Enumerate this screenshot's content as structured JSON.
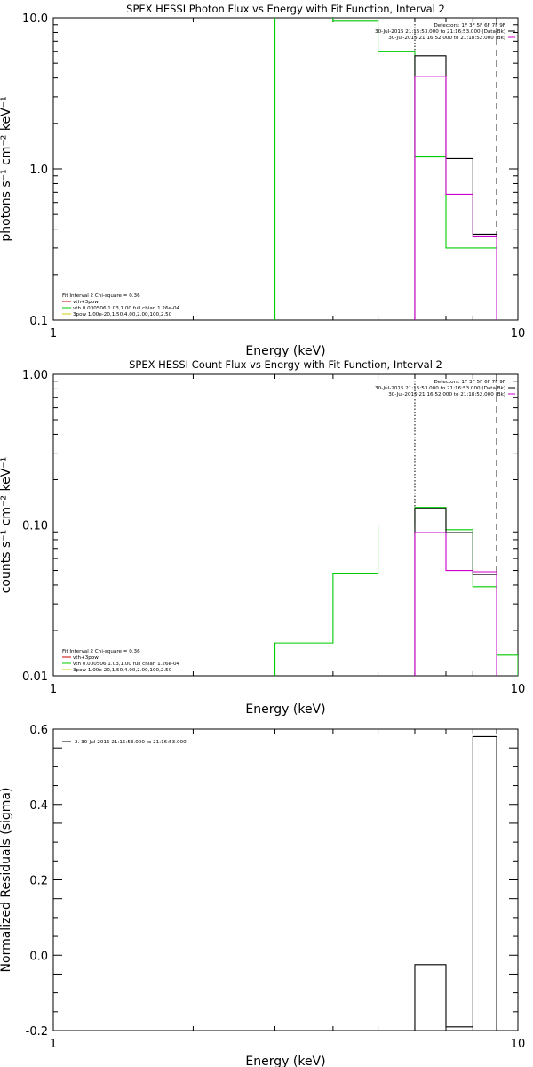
{
  "chart_data": [
    {
      "type": "line",
      "title": "SPEX HESSI Photon Flux vs Energy with Fit Function, Interval 2",
      "xlabel": "Energy (keV)",
      "ylabel": "photons s⁻¹ cm⁻² keV⁻¹",
      "xscale": "log",
      "yscale": "log",
      "xlim": [
        1,
        10
      ],
      "ylim": [
        0.1,
        10
      ],
      "xticks": [
        {
          "v": 1,
          "label": "1"
        },
        {
          "v": 10,
          "label": "10"
        }
      ],
      "yticks": [
        {
          "v": 0.1,
          "label": "0.1"
        },
        {
          "v": 1,
          "label": "1.0"
        },
        {
          "v": 10,
          "label": "10.0"
        }
      ],
      "legend_tr": [
        {
          "text": "Detectors: 1F 3F 5F 6F 7F 9F",
          "color": ""
        },
        {
          "text": "30-Jul-2015 21:15:53.000 to 21:16:53.000 (Data-Bk)",
          "color": "#000000"
        },
        {
          "text": "30-Jul-2015 21:16:52.000 to 21:18:52.000 (Bk)",
          "color": "#cc00cc"
        }
      ],
      "legend_bl": [
        {
          "text": "Fit Interval 2   Chi-square = 0.36",
          "color": ""
        },
        {
          "text": "vth+3pow",
          "color": "#cc0000"
        },
        {
          "text": "vth 0.000506,1.03,1.00  full chian 1.26e-04",
          "color": "#00cc00"
        },
        {
          "text": "3pow 1.00e-20,1.50,4.00,2.00,100,2.50",
          "color": "#cccc00"
        }
      ],
      "vlines": [
        {
          "x": 6.0,
          "style": "dotted",
          "color": "#000000"
        },
        {
          "x": 9.0,
          "style": "dashed",
          "color": "#000000"
        }
      ],
      "series": [
        {
          "name": "vth+3pow",
          "color": "#00cc00",
          "edges": [
            3,
            4,
            5,
            6,
            7,
            8,
            9
          ],
          "values": [
            10.9,
            9.5,
            6.0,
            1.2,
            0.3,
            0.3
          ]
        },
        {
          "name": "30-Jul-2015 21:15:53.000 to 21:16:53.000 (Data-Bk)",
          "color": "#000000",
          "edges": [
            6,
            7,
            8,
            9
          ],
          "values": [
            5.6,
            1.17,
            0.37
          ]
        },
        {
          "name": "30-Jul-2015 21:16:52.000 to 21:18:52.000 (Bk)",
          "color": "#cc00cc",
          "edges": [
            6,
            7,
            8,
            9
          ],
          "values": [
            4.1,
            0.68,
            0.36
          ]
        }
      ]
    },
    {
      "type": "line",
      "title": "SPEX HESSI Count Flux vs Energy with Fit Function, Interval 2",
      "xlabel": "Energy (keV)",
      "ylabel": "counts s⁻¹ cm⁻² keV⁻¹",
      "xscale": "log",
      "yscale": "log",
      "xlim": [
        1,
        10
      ],
      "ylim": [
        0.01,
        1
      ],
      "xticks": [
        {
          "v": 1,
          "label": "1"
        },
        {
          "v": 10,
          "label": "10"
        }
      ],
      "yticks": [
        {
          "v": 0.01,
          "label": "0.01"
        },
        {
          "v": 0.1,
          "label": "0.10"
        },
        {
          "v": 1,
          "label": "1.00"
        }
      ],
      "legend_tr": [
        {
          "text": "Detectors: 1F 3F 5F 6F 7F 9F",
          "color": ""
        },
        {
          "text": "30-Jul-2015 21:15:53.000 to 21:16:53.000 (Data-Bk)",
          "color": "#000000"
        },
        {
          "text": "30-Jul-2015 21:16:52.000 to 21:18:52.000 (Bk)",
          "color": "#cc00cc"
        }
      ],
      "legend_bl": [
        {
          "text": "Fit Interval 2   Chi-square = 0.36",
          "color": ""
        },
        {
          "text": "vth+3pow",
          "color": "#cc0000"
        },
        {
          "text": "vth 0.000506,1.03,1.00  full chian 1.26e-04",
          "color": "#00cc00"
        },
        {
          "text": "3pow 1.00e-20,1.50,4.00,2.00,100,2.50",
          "color": "#cccc00"
        }
      ],
      "vlines": [
        {
          "x": 6.0,
          "style": "dotted",
          "color": "#000000"
        },
        {
          "x": 9.0,
          "style": "dashed",
          "color": "#000000"
        }
      ],
      "series": [
        {
          "name": "vth+3pow",
          "color": "#00cc00",
          "edges": [
            3,
            4,
            5,
            6,
            7,
            8,
            9,
            10
          ],
          "values": [
            0.0165,
            0.048,
            0.1,
            0.131,
            0.093,
            0.039,
            0.0137
          ]
        },
        {
          "name": "30-Jul-2015 21:15:53.000 to 21:16:53.000 (Data-Bk)",
          "color": "#000000",
          "edges": [
            6,
            7,
            8,
            9
          ],
          "values": [
            0.129,
            0.089,
            0.047
          ]
        },
        {
          "name": "30-Jul-2015 21:16:52.000 to 21:18:52.000 (Bk)",
          "color": "#cc00cc",
          "edges": [
            6,
            7,
            8,
            9
          ],
          "values": [
            0.089,
            0.05,
            0.049
          ]
        }
      ]
    },
    {
      "type": "line",
      "title": "",
      "xlabel": "Energy (keV)",
      "ylabel": "Normalized Residuals (sigma)",
      "xscale": "log",
      "yscale": "linear",
      "xlim": [
        1,
        10
      ],
      "ylim": [
        -0.2,
        0.6
      ],
      "xticks": [
        {
          "v": 1,
          "label": "1"
        },
        {
          "v": 10,
          "label": "10"
        }
      ],
      "yticks": [
        {
          "v": -0.2,
          "label": "-0.2"
        },
        {
          "v": 0,
          "label": "0.0"
        },
        {
          "v": 0.2,
          "label": "0.2"
        },
        {
          "v": 0.4,
          "label": "0.4"
        },
        {
          "v": 0.6,
          "label": "0.6"
        }
      ],
      "legend_tr": [],
      "legend_tl": [
        {
          "text": "2. 30-Jul-2015 21:15:53.000 to 21:16:53.000",
          "color": "#000000"
        }
      ],
      "legend_bl": [],
      "vlines": [],
      "series": [
        {
          "name": "2. 30-Jul-2015 21:15:53.000 to 21:16:53.000",
          "color": "#000000",
          "edges": [
            6,
            7,
            8,
            9
          ],
          "values": [
            -0.025,
            -0.19,
            0.58
          ],
          "baseline": -0.2
        }
      ]
    }
  ]
}
